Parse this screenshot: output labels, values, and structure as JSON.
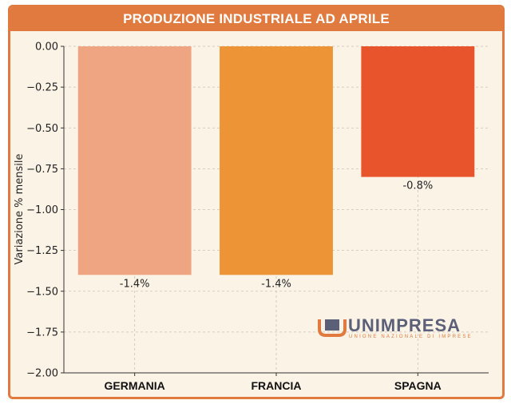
{
  "chart_data": {
    "type": "bar",
    "title": "PRODUZIONE INDUSTRIALE AD APRILE",
    "ylabel": "Variazione % mensile",
    "xlabel": "",
    "categories": [
      "GERMANIA",
      "FRANCIA",
      "SPAGNA"
    ],
    "values": [
      -1.4,
      -1.4,
      -0.8
    ],
    "data_labels": [
      "-1.4%",
      "-1.4%",
      "-0.8%"
    ],
    "colors": [
      "#efa582",
      "#ec9436",
      "#e8542b"
    ],
    "ylim": [
      -2.0,
      0.0
    ],
    "yticks": [
      0.0,
      -0.25,
      -0.5,
      -0.75,
      -1.0,
      -1.25,
      -1.5,
      -1.75,
      -2.0
    ],
    "ytick_labels": [
      "0.00",
      "−0.25",
      "−0.50",
      "−0.75",
      "−1.00",
      "−1.25",
      "−1.50",
      "−1.75",
      "−2.00"
    ],
    "grid": true
  },
  "theme": {
    "frame_color": "#e07a3e",
    "background": "#fbf3e6"
  },
  "logo": {
    "name": "UNIMPRESA",
    "tagline": "UNIONE NAZIONALE DI IMPRESE"
  }
}
